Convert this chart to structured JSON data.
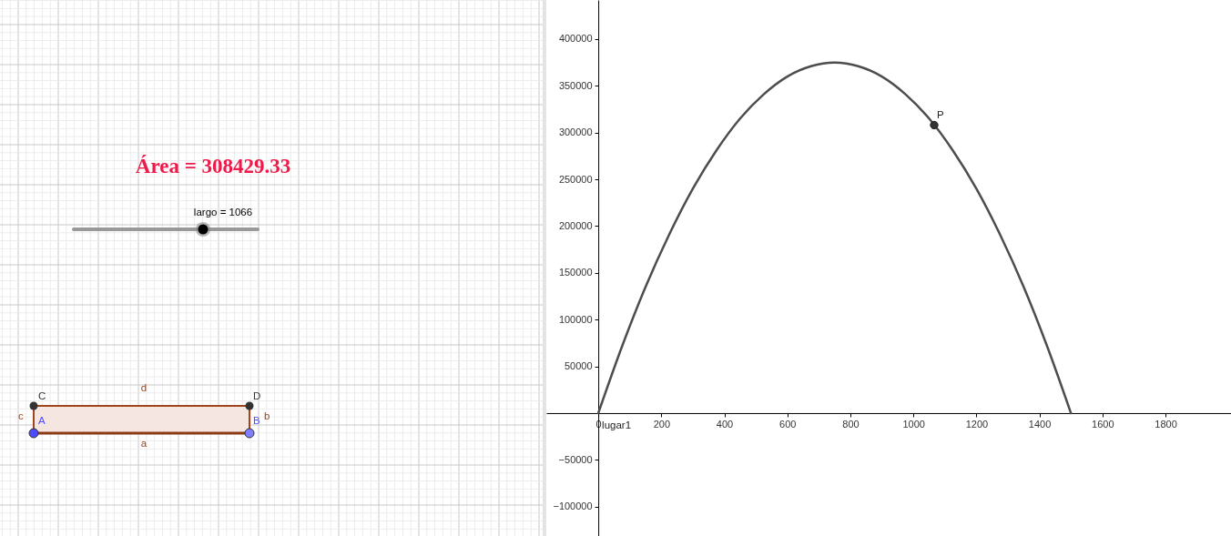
{
  "chart_data": [
    {
      "type": "other",
      "title": "Área = 308429.33",
      "annotations": [
        "largo = 1066",
        "A",
        "B",
        "C",
        "D",
        "a",
        "b",
        "c",
        "d"
      ]
    },
    {
      "type": "line",
      "xlim": [
        -165,
        2008
      ],
      "ylim": [
        -131400,
        441800
      ],
      "xticks": [
        0,
        200,
        400,
        600,
        800,
        1000,
        1200,
        1400,
        1600,
        1800
      ],
      "yticks": [
        {
          "value": -100000,
          "label": "−100000"
        },
        {
          "value": -50000,
          "label": "−50000"
        },
        50000,
        100000,
        150000,
        200000,
        250000,
        300000,
        350000,
        400000
      ],
      "grid": false,
      "series": [
        {
          "name": "lugar1",
          "type": "line",
          "color": "#4d4d4d",
          "x": [
            0,
            75,
            150,
            225,
            300,
            375,
            450,
            525,
            600,
            675,
            750,
            825,
            900,
            975,
            1050,
            1125,
            1200,
            1275,
            1350,
            1425,
            1500
          ],
          "values": [
            0,
            71000,
            135000,
            191000,
            240000,
            281000,
            315000,
            341000,
            360000,
            371000,
            375000,
            371000,
            360000,
            341000,
            315000,
            281000,
            240000,
            191000,
            135000,
            71000,
            0
          ]
        },
        {
          "name": "P",
          "type": "scatter",
          "color": "#333333",
          "marker": "circle",
          "x": [
            1066
          ],
          "values": [
            308000
          ]
        }
      ]
    }
  ]
}
